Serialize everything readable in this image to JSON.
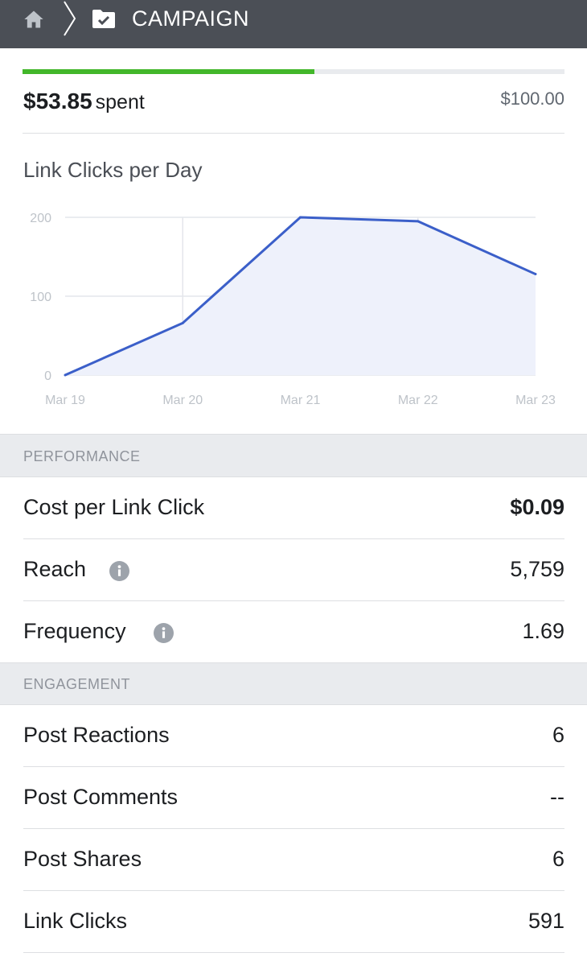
{
  "header": {
    "title": "CAMPAIGN",
    "icons": [
      "home-icon",
      "chevron-right-icon",
      "folder-check-icon"
    ]
  },
  "budget": {
    "spent_amount": "$53.85",
    "spent_label": "spent",
    "total": "$100.00",
    "progress_fraction": 0.5385,
    "progress_color": "#42b72a"
  },
  "chart_data": {
    "type": "area",
    "title": "Link Clicks per Day",
    "categories": [
      "Mar 19",
      "Mar 20",
      "Mar 21",
      "Mar 22",
      "Mar 23"
    ],
    "values": [
      0,
      66,
      200,
      195,
      128
    ],
    "y_ticks": [
      "0",
      "100",
      "200"
    ],
    "ylim": [
      0,
      200
    ],
    "grid": true,
    "line_color": "#3b5fc9",
    "fill_color": "#eef1fb"
  },
  "performance": {
    "heading": "PERFORMANCE",
    "rows": [
      {
        "label": "Cost per Link Click",
        "value": "$0.09",
        "info": false
      },
      {
        "label": "Reach",
        "value": "5,759",
        "info": true
      },
      {
        "label": "Frequency",
        "value": "1.69",
        "info": true
      }
    ]
  },
  "engagement": {
    "heading": "ENGAGEMENT",
    "rows": [
      {
        "label": "Post Reactions",
        "value": "6"
      },
      {
        "label": "Post Comments",
        "value": "--"
      },
      {
        "label": "Post Shares",
        "value": "6"
      },
      {
        "label": "Link Clicks",
        "value": "591"
      }
    ]
  }
}
